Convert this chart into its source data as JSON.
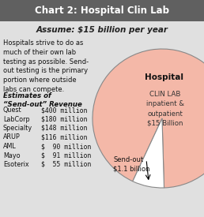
{
  "title": "Chart 2: Hospital Clin Lab",
  "subtitle": "Assume: $15 billion per year",
  "body_text": "Hospitals strive to do as\nmuch of their own lab\ntesting as possible. Send-\nout testing is the primary\nportion where outside\nlabs can compete.",
  "estimates_title": "Estimates of\n“Send-out” Revenue",
  "estimates": [
    [
      "Quest",
      "$400 million"
    ],
    [
      "LabCorp",
      "$180 million"
    ],
    [
      "Specialty",
      "$148 million"
    ],
    [
      "ARUP",
      "$116 million"
    ],
    [
      "AML",
      "$  90 million"
    ],
    [
      "Mayo",
      "$  91 million"
    ],
    [
      "Esoterix",
      "$  55 million"
    ]
  ],
  "pie_hospital_label": "Hospital",
  "pie_clinlab_label": "CLIN LAB\ninpatient &\noutpatient\n$15 Billion",
  "pie_sendout_label": "Send-out\n$1.1 billion",
  "pie_hospital_color": "#f4b8a8",
  "pie_sendout_color": "#ffffff",
  "pie_hospital_pct": 92.6,
  "pie_sendout_pct": 7.4,
  "header_bg": "#606060",
  "header_fg": "#ffffff",
  "chart_bg": "#cccccc",
  "body_bg": "#e0e0e0"
}
